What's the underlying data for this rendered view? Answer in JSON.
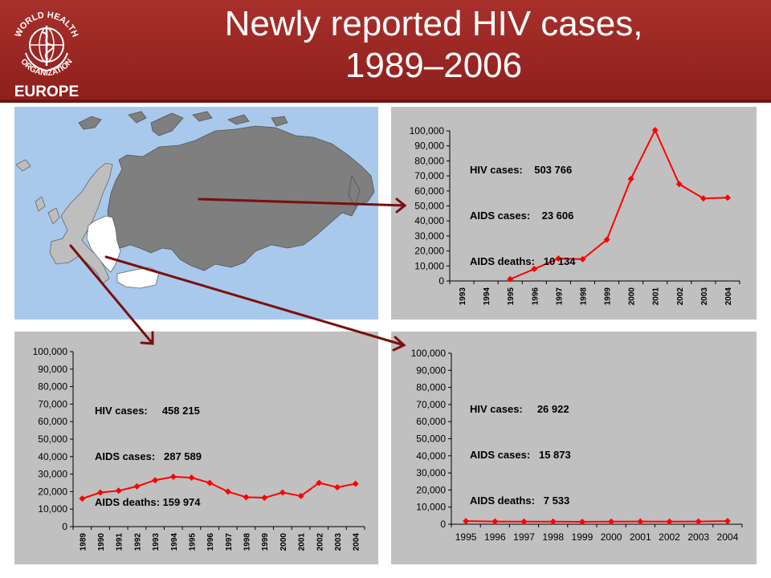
{
  "logo": {
    "top_text": "WORLD HEALTH",
    "bottom_text": "ORGANIZATION",
    "region": "EUROPE"
  },
  "title": {
    "line1": "Newly reported HIV cases,",
    "line2": "1989–2006"
  },
  "colors": {
    "header": "#9b2622",
    "series": "#ff0000",
    "arrow": "#7a1010",
    "panel": "#c0c0c0",
    "sea": "#a9c9ec",
    "east_region": "#7f7f7f",
    "west_region": "#bebebe",
    "centre_region": "#ffffff"
  },
  "map": {
    "regions": [
      "east",
      "centre",
      "west"
    ]
  },
  "stats": {
    "east": {
      "hiv": "HIV cases:    503 766",
      "aids": "AIDS cases:    23 606",
      "deaths": "AIDS deaths:   10 134"
    },
    "west": {
      "hiv": "HIV cases:     458 215",
      "aids": "AIDS cases:   287 589",
      "deaths": "AIDS deaths: 159 974"
    },
    "centre": {
      "hiv": "HIV cases:     26 922",
      "aids": "AIDS cases:   15 873",
      "deaths": "AIDS deaths:   7 533"
    }
  },
  "chart_data": [
    {
      "id": "east",
      "type": "line",
      "region_color": "grey",
      "x_tick_rotation": "vertical",
      "categories": [
        "1993",
        "1994",
        "1995",
        "1996",
        "1997",
        "1998",
        "1999",
        "2000",
        "2001",
        "2002",
        "2003",
        "2004"
      ],
      "series": [
        {
          "values": [
            null,
            null,
            1200,
            8000,
            15000,
            14500,
            27500,
            68000,
            100500,
            64500,
            55000,
            55500
          ]
        }
      ],
      "ylim": [
        0,
        100000
      ],
      "yticks": [
        "0",
        "10,000",
        "20,000",
        "30,000",
        "40,000",
        "50,000",
        "60,000",
        "70,000",
        "80,000",
        "90,000",
        "100,000"
      ],
      "grid": false
    },
    {
      "id": "west",
      "type": "line",
      "region_color": "light grey",
      "x_tick_rotation": "vertical",
      "categories": [
        "1989",
        "1990",
        "1991",
        "1992",
        "1993",
        "1994",
        "1995",
        "1996",
        "1997",
        "1998",
        "1999",
        "2000",
        "2001",
        "2002",
        "2003",
        "2004"
      ],
      "series": [
        {
          "values": [
            16000,
            19500,
            20500,
            23000,
            26500,
            28500,
            28000,
            25000,
            20000,
            16800,
            16500,
            19500,
            17500,
            25000,
            22500,
            24500
          ]
        }
      ],
      "ylim": [
        0,
        100000
      ],
      "yticks": [
        "0",
        "10,000",
        "20,000",
        "30,000",
        "40,000",
        "50,000",
        "60,000",
        "70,000",
        "80,000",
        "90,000",
        "100,000"
      ],
      "grid": false
    },
    {
      "id": "centre",
      "type": "line",
      "region_color": "white",
      "x_tick_rotation": "horizontal",
      "categories": [
        "1995",
        "1996",
        "1997",
        "1998",
        "1999",
        "2000",
        "2001",
        "2002",
        "2003",
        "2004"
      ],
      "series": [
        {
          "values": [
            1800,
            1600,
            1500,
            1500,
            1400,
            1500,
            1600,
            1500,
            1600,
            1800
          ]
        }
      ],
      "ylim": [
        0,
        100000
      ],
      "yticks": [
        "0",
        "10,000",
        "20,000",
        "30,000",
        "40,000",
        "50,000",
        "60,000",
        "70,000",
        "80,000",
        "90,000",
        "100,000"
      ],
      "grid": false
    }
  ]
}
